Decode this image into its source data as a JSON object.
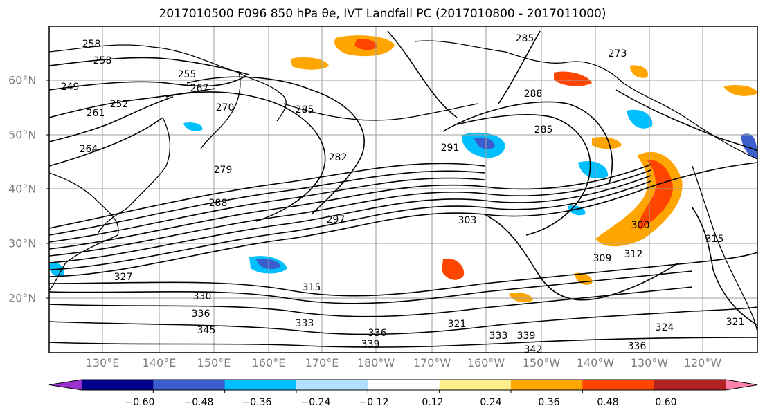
{
  "title": "2017010500 F096 850 hPa θe, IVT Landfall PC (2017010800 - 2017011000)",
  "latitude_labels": [
    "60°N",
    "50°N",
    "40°N",
    "30°N",
    "20°N"
  ],
  "longitude_labels": [
    "130°E",
    "140°E",
    "150°E",
    "160°E",
    "170°E",
    "180°W",
    "170°W",
    "160°W",
    "150°W",
    "140°W",
    "130°W",
    "120°W"
  ],
  "colorbar": {
    "colors": [
      "#9932cc",
      "#00008b",
      "#3a5fcd",
      "#00bfff",
      "#b0e2ff",
      "#ffffff",
      "#ffec8b",
      "#ffa500",
      "#ff4500",
      "#b22222",
      "#ff82ab"
    ],
    "tick_labels": [
      "−0.60",
      "−0.48",
      "−0.36",
      "−0.24",
      "−0.12",
      "0.12",
      "0.24",
      "0.36",
      "0.48",
      "0.60"
    ]
  },
  "contour_labels": [
    "258",
    "249",
    "252",
    "258",
    "261",
    "264",
    "270",
    "267",
    "255",
    "285",
    "279",
    "282",
    "288",
    "297",
    "291",
    "303",
    "288",
    "285",
    "273",
    "327",
    "330",
    "336",
    "345",
    "315",
    "321",
    "333",
    "339",
    "336",
    "309",
    "312",
    "300",
    "315",
    "324",
    "336",
    "342",
    "339",
    "321",
    "285",
    "333"
  ]
}
